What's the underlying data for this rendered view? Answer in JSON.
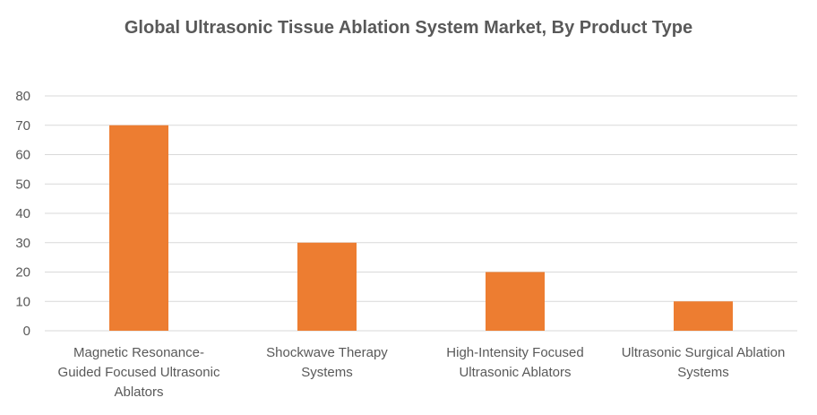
{
  "chart_data": {
    "type": "bar",
    "title": "Global Ultrasonic Tissue Ablation System Market, By Product Type",
    "categories": [
      "Magnetic Resonance-Guided Focused Ultrasonic Ablators",
      "Shockwave Therapy Systems",
      "High-Intensity Focused Ultrasonic Ablators",
      "Ultrasonic Surgical Ablation Systems"
    ],
    "category_lines": [
      [
        "Magnetic Resonance-",
        "Guided Focused Ultrasonic",
        "Ablators"
      ],
      [
        "Shockwave Therapy",
        "Systems"
      ],
      [
        "High-Intensity Focused",
        "Ultrasonic Ablators"
      ],
      [
        "Ultrasonic Surgical Ablation",
        "Systems"
      ]
    ],
    "values": [
      70,
      30,
      20,
      10
    ],
    "ylim": [
      0,
      80
    ],
    "yticks": [
      0,
      10,
      20,
      30,
      40,
      50,
      60,
      70,
      80
    ],
    "xlabel": "",
    "ylabel": "",
    "grid": true,
    "legend": "none",
    "bar_color": "#ed7d31"
  }
}
